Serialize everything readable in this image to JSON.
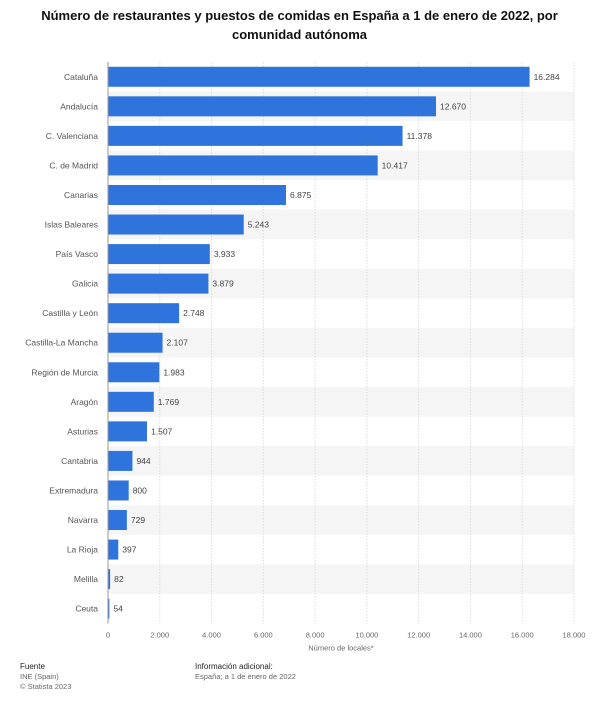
{
  "chart_data": {
    "type": "bar",
    "orientation": "horizontal",
    "title": "Número de restaurantes y puestos de comidas en España a 1 de enero de 2022, por comunidad autónoma",
    "categories": [
      "Cataluña",
      "Andalucía",
      "C. Valenciana",
      "C. de Madrid",
      "Canarias",
      "Islas Baleares",
      "País Vasco",
      "Galicia",
      "Castilla y León",
      "Castilla-La Mancha",
      "Región de Murcia",
      "Aragón",
      "Asturias",
      "Cantabria",
      "Extremadura",
      "Navarra",
      "La Rioja",
      "Melilla",
      "Ceuta"
    ],
    "values": [
      16284,
      12670,
      11378,
      10417,
      6875,
      5243,
      3933,
      3879,
      2748,
      2107,
      1983,
      1769,
      1507,
      944,
      800,
      729,
      397,
      82,
      54
    ],
    "value_labels": [
      "16.284",
      "12.670",
      "11.378",
      "10.417",
      "6.875",
      "5.243",
      "3.933",
      "3.879",
      "2.748",
      "2.107",
      "1.983",
      "1.769",
      "1.507",
      "944",
      "800",
      "729",
      "397",
      "82",
      "54"
    ],
    "xlabel": "Número de locales*",
    "xlim": [
      0,
      18000
    ],
    "xticks": [
      0,
      2000,
      4000,
      6000,
      8000,
      10000,
      12000,
      14000,
      16000,
      18000
    ],
    "xtick_labels": [
      "0",
      "2.000",
      "4.000",
      "6.000",
      "8.000",
      "10.000",
      "12.000",
      "14.000",
      "16.000",
      "18.000"
    ],
    "grid": true,
    "bar_color": "#2f74dc",
    "band_color": "#f5f5f5"
  },
  "footer": {
    "source_heading": "Fuente",
    "source_lines": [
      "INE (Spain)",
      "© Statista 2023"
    ],
    "info_heading": "Información adicional:",
    "info_lines": [
      "España; a 1 de enero de 2022"
    ]
  }
}
